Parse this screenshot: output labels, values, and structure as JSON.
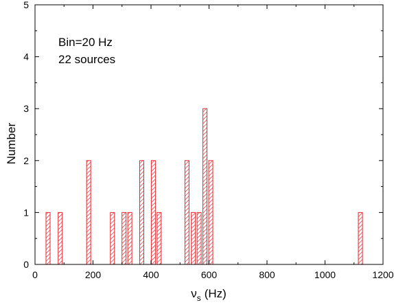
{
  "chart_data": {
    "type": "bar",
    "style": "histogram",
    "xlabel_symbol": "ν",
    "xlabel_subscript": "s",
    "xlabel_unit": "(Hz)",
    "ylabel": "Number",
    "xlim": [
      0,
      1200
    ],
    "ylim": [
      0,
      5
    ],
    "xticks": [
      0,
      200,
      400,
      600,
      800,
      1000,
      1200
    ],
    "yticks": [
      0,
      1,
      2,
      3,
      4,
      5
    ],
    "annotations": [
      "Bin=20 Hz",
      "22 sources"
    ],
    "bar_color": "#e8252b",
    "bar_fill": "hatched",
    "bars": [
      {
        "x": 45,
        "value": 1
      },
      {
        "x": 87,
        "value": 1
      },
      {
        "x": 185,
        "value": 2
      },
      {
        "x": 267,
        "value": 1
      },
      {
        "x": 307,
        "value": 1
      },
      {
        "x": 327,
        "value": 1
      },
      {
        "x": 368,
        "value": 2
      },
      {
        "x": 408,
        "value": 2
      },
      {
        "x": 428,
        "value": 1
      },
      {
        "x": 524,
        "value": 2
      },
      {
        "x": 546,
        "value": 1
      },
      {
        "x": 566,
        "value": 1
      },
      {
        "x": 586,
        "value": 3
      },
      {
        "x": 606,
        "value": 2
      },
      {
        "x": 1122,
        "value": 1
      }
    ]
  }
}
